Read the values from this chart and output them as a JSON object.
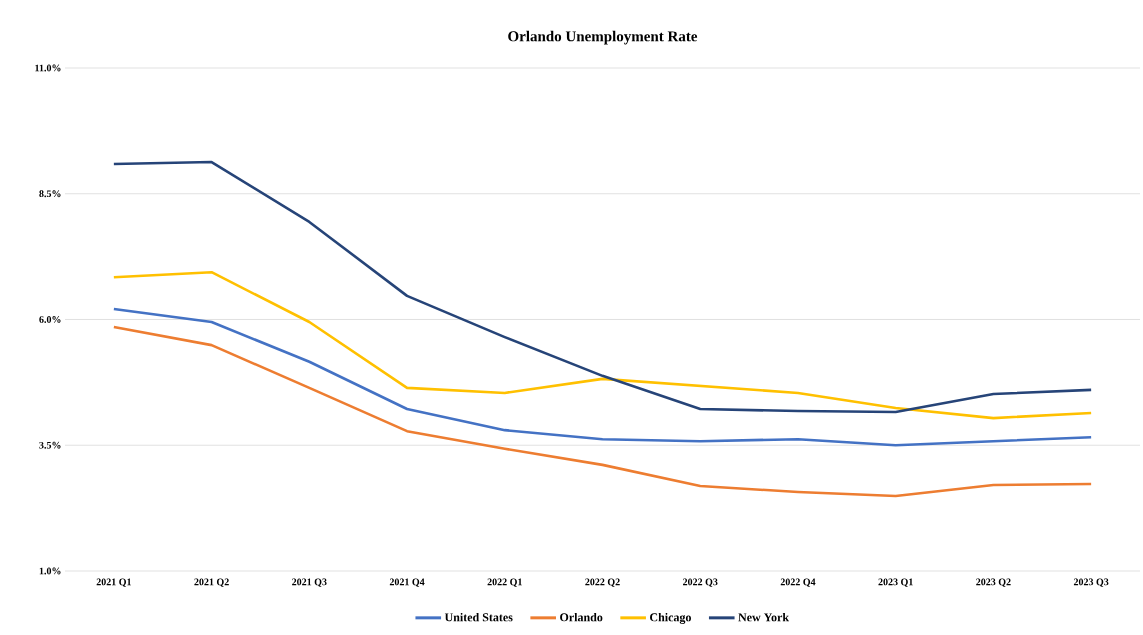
{
  "chart_data": {
    "type": "line",
    "title": "Orlando Unemployment Rate",
    "categories": [
      "2021 Q1",
      "2021 Q2",
      "2021 Q3",
      "2021 Q4",
      "2022 Q1",
      "2022 Q2",
      "2022 Q3",
      "2022 Q4",
      "2023 Q1",
      "2023 Q2",
      "2023 Q3"
    ],
    "series": [
      {
        "name": "United States",
        "color": "#4472c4",
        "values": [
          6.21,
          5.95,
          5.16,
          4.22,
          3.8,
          3.62,
          3.58,
          3.62,
          3.5,
          3.58,
          3.66
        ]
      },
      {
        "name": "Orlando",
        "color": "#ed7d31",
        "values": [
          5.85,
          5.49,
          4.64,
          3.78,
          3.43,
          3.11,
          2.69,
          2.57,
          2.49,
          2.71,
          2.73
        ]
      },
      {
        "name": "Chicago",
        "color": "#ffc000",
        "values": [
          6.84,
          6.94,
          5.95,
          4.64,
          4.54,
          4.82,
          4.68,
          4.54,
          4.24,
          4.04,
          4.14
        ]
      },
      {
        "name": "New York",
        "color": "#264478",
        "values": [
          9.09,
          9.13,
          7.94,
          6.47,
          5.65,
          4.88,
          4.22,
          4.18,
          4.16,
          4.52,
          4.6
        ]
      }
    ],
    "ylim": [
      1.0,
      11.0
    ],
    "yticks": [
      {
        "value": 1.0,
        "label": "1.0%"
      },
      {
        "value": 3.5,
        "label": "3.5%"
      },
      {
        "value": 6.0,
        "label": "6.0%"
      },
      {
        "value": 8.5,
        "label": "8.5%"
      },
      {
        "value": 11.0,
        "label": "11.0%"
      }
    ],
    "grid": "y",
    "legend": "bottom",
    "marker": "none",
    "line_style": "solid"
  }
}
